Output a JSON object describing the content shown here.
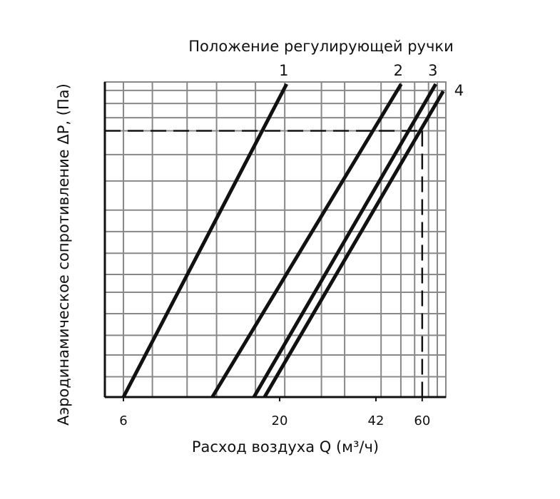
{
  "chart_data": {
    "type": "line",
    "title": "Положение регулирующей ручки",
    "x_label": "Расход воздуха Q (м³/ч)",
    "y_label": "Аэродинамическое сопротивление ΔP, (Па)",
    "x_scale": "log",
    "y_scale": "log",
    "xlim": [
      5.2,
      72
    ],
    "ylim": [
      10,
      100
    ],
    "xticks": [
      6,
      20,
      42,
      60
    ],
    "xgrid": [
      6,
      7.5,
      9.8,
      12.3,
      16.6,
      20.8,
      27.6,
      33,
      43.7,
      50.9,
      56.6,
      63,
      67.4
    ],
    "ygrid": [
      11.6,
      13.6,
      15.7,
      18.4,
      21.5,
      24.5,
      28.6,
      33.5,
      39.2,
      48.5,
      58.8,
      70,
      77,
      85.5,
      94
    ],
    "grid": true,
    "reference_x": 60,
    "reference_y": 70,
    "series": [
      {
        "name": "1",
        "color": "#111111",
        "x": [
          6,
          21.1
        ],
        "values": [
          10,
          98.5
        ]
      },
      {
        "name": "2",
        "color": "#111111",
        "x": [
          11.9,
          51.0
        ],
        "values": [
          10,
          98.5
        ]
      },
      {
        "name": "3",
        "color": "#111111",
        "x": [
          16.4,
          66.6
        ],
        "values": [
          10,
          98.5
        ]
      },
      {
        "name": "4",
        "color": "#111111",
        "x": [
          17.8,
          70.6
        ],
        "values": [
          10,
          93.5
        ]
      }
    ]
  }
}
